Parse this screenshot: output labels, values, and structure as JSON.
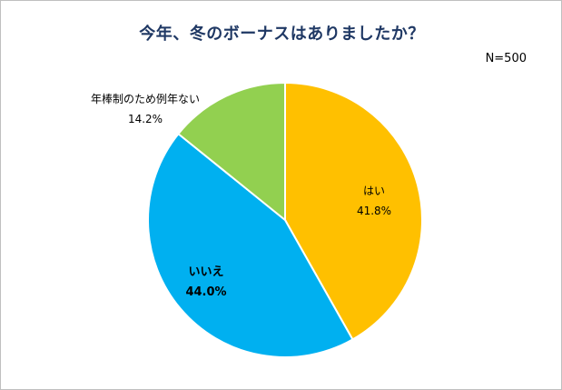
{
  "chart_data": {
    "type": "pie",
    "title": "今年、冬のボーナスはありましたか？",
    "note": "N=500",
    "start_angle_deg": 0,
    "direction": "clockwise",
    "slices": [
      {
        "label": "はい",
        "value": 41.8,
        "value_label": "41.8%",
        "color": "#ffc000",
        "label_weight": "normal"
      },
      {
        "label": "いいえ",
        "value": 44.0,
        "value_label": "44.0%",
        "color": "#00b0f0",
        "label_weight": "bold"
      },
      {
        "label": "年棒制のため例年ない",
        "value": 14.2,
        "value_label": "14.2%",
        "color": "#92d050",
        "label_weight": "normal"
      }
    ]
  }
}
